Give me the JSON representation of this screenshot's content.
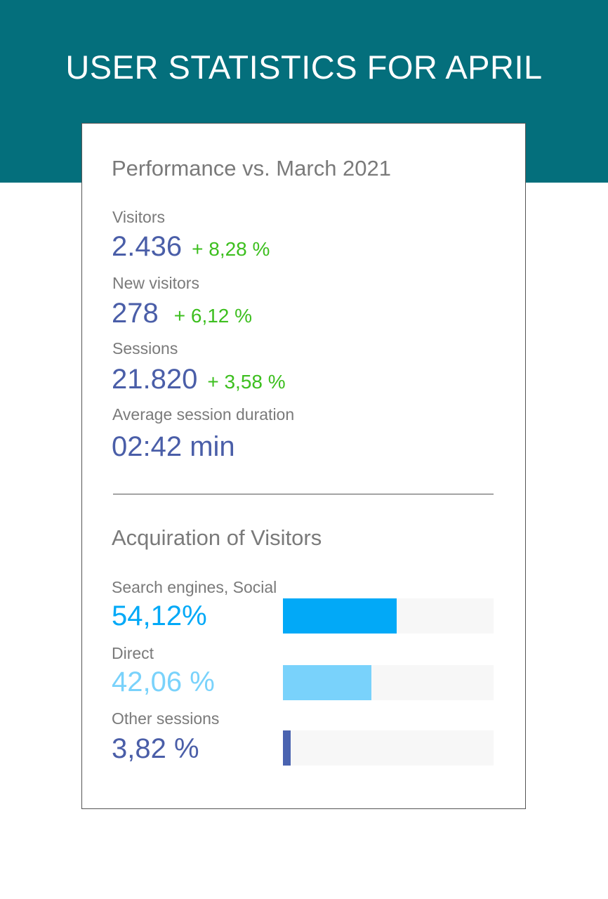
{
  "header": {
    "title": "USER STATISTICS FOR APRIL"
  },
  "performance": {
    "title": "Performance vs. March 2021",
    "metrics": [
      {
        "label": "Visitors",
        "value": "2.436",
        "change": "+ 8,28 %"
      },
      {
        "label": "New visitors",
        "value": "278",
        "change": "+ 6,12 %"
      },
      {
        "label": "Sessions",
        "value": "21.820",
        "change": "+ 3,58 %"
      },
      {
        "label": "Average session duration",
        "value": "02:42 min",
        "change": ""
      }
    ]
  },
  "acquisition": {
    "title": "Acquiration of Visitors"
  },
  "chart_data": {
    "type": "bar",
    "orientation": "horizontal",
    "categories": [
      "Search engines, Social",
      "Direct",
      "Other sessions"
    ],
    "value_labels": [
      "54,12%",
      "42,06 %",
      "3,82 %"
    ],
    "values": [
      54.12,
      42.06,
      3.82
    ],
    "xlim": [
      0,
      100
    ],
    "colors": [
      "#02a9f7",
      "#79d2fb",
      "#4a63b0"
    ],
    "label_colors": [
      "#02a9f7",
      "#79d2fb",
      "#4a5ea8"
    ],
    "track_color": "#f7f7f7"
  }
}
